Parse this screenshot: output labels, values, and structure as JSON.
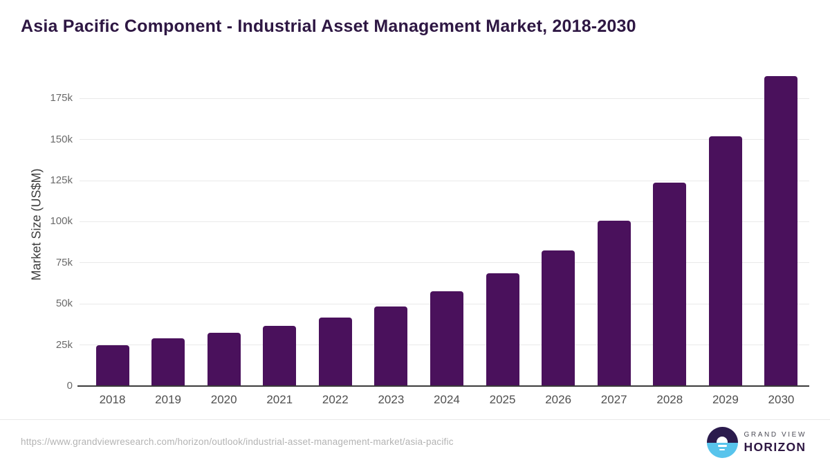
{
  "title": "Asia Pacific Component - Industrial Asset Management Market, 2018-2030",
  "footer": {
    "source_url": "https://www.grandviewresearch.com/horizon/outlook/industrial-asset-management-market/asia-pacific",
    "logo": {
      "top_text": "GRAND VIEW",
      "bottom_text": "HORIZON"
    }
  },
  "colors": {
    "bar": "#4a115c",
    "title": "#2e1743",
    "grid": "#e9e9e9",
    "axis": "#3a3a3a",
    "ytick": "#6a6a6a",
    "xtick": "#4f4f4f",
    "ylabel": "#3d3d3d",
    "url": "#b3b3b3",
    "divider": "#e8e8e8",
    "logo_dark": "#2b1b4d",
    "logo_blue": "#58c4ec",
    "logo_gray": "#4b4b55"
  },
  "chart_data": {
    "type": "bar",
    "title": "Asia Pacific Component - Industrial Asset Management Market, 2018-2030",
    "xlabel": "",
    "ylabel": "Market Size (US$M)",
    "categories": [
      "2018",
      "2019",
      "2020",
      "2021",
      "2022",
      "2023",
      "2024",
      "2025",
      "2026",
      "2027",
      "2028",
      "2029",
      "2030"
    ],
    "values": [
      25000,
      29200,
      32400,
      36500,
      41700,
      48300,
      57500,
      68700,
      82400,
      100500,
      123700,
      152100,
      188700
    ],
    "ylim": [
      0,
      190000
    ],
    "yticks": [
      0,
      25000,
      50000,
      75000,
      100000,
      125000,
      150000,
      175000
    ],
    "ytick_labels": [
      "0",
      "25k",
      "50k",
      "75k",
      "100k",
      "125k",
      "150k",
      "175k"
    ],
    "grid": true,
    "legend": false
  }
}
